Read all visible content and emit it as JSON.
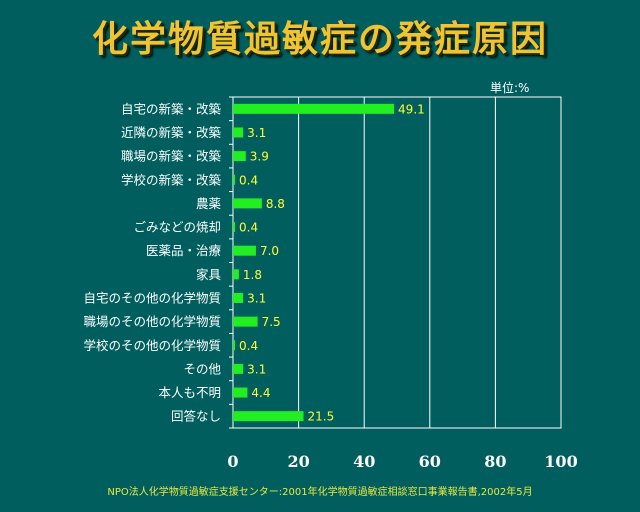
{
  "title": "化学物質過敏症の発症原因",
  "unit_label": "単位:%",
  "source": "NPO法人化学物質過敏症支援センター:2001年化学物質過敏症相談窓口事業報告書,2002年5月",
  "colors": {
    "background": "#005e5e",
    "title": "#f0c430",
    "bar": "#22ee22",
    "value_label": "#ffff33",
    "category_label": "#ffffff",
    "grid": "#ffffff"
  },
  "chart_data": {
    "type": "bar",
    "orientation": "horizontal",
    "title": "化学物質過敏症の発症原因",
    "categories": [
      "自宅の新築・改築",
      "近隣の新築・改築",
      "職場の新築・改築",
      "学校の新築・改築",
      "農薬",
      "ごみなどの焼却",
      "医薬品・治療",
      "家具",
      "自宅のその他の化学物質",
      "職場のその他の化学物質",
      "学校のその他の化学物質",
      "その他",
      "本人も不明",
      "回答なし"
    ],
    "values": [
      49.1,
      3.1,
      3.9,
      0.4,
      8.8,
      0.4,
      7.0,
      1.8,
      3.1,
      7.5,
      0.4,
      3.1,
      4.4,
      21.5
    ],
    "value_labels": [
      "49.1",
      "3.1",
      "3.9",
      "0.4",
      "8.8",
      "0.4",
      "7.0",
      "1.8",
      "3.1",
      "7.5",
      "0.4",
      "3.1",
      "4.4",
      "21.5"
    ],
    "xlim": [
      0,
      100
    ],
    "x_ticks": [
      0,
      20,
      40,
      60,
      80,
      100
    ],
    "x_tick_labels": [
      "0",
      "20",
      "40",
      "60",
      "80",
      "100"
    ],
    "unit": "単位:%",
    "grid": true
  }
}
